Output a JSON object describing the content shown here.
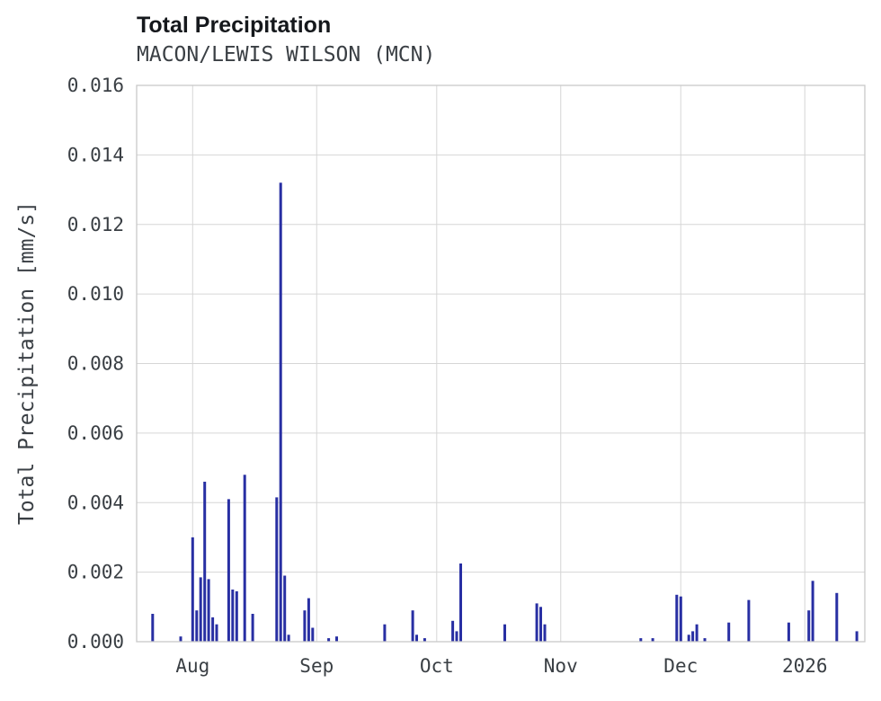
{
  "chart_data": {
    "type": "bar",
    "title": "Total Precipitation",
    "subtitle": "MACON/LEWIS WILSON (MCN)",
    "xlabel": "",
    "ylabel": "Total Precipitation [mm/s]",
    "ylim": [
      0,
      0.016
    ],
    "xlim": [
      "2025-07-18",
      "2026-01-16"
    ],
    "grid": true,
    "legend": "none",
    "bar_color": "#282fa3",
    "grid_color": "#d6d6d6",
    "border_color": "#c9c9c9",
    "y_ticks": [
      {
        "value": 0.0,
        "label": "0.000"
      },
      {
        "value": 0.002,
        "label": "0.002"
      },
      {
        "value": 0.004,
        "label": "0.004"
      },
      {
        "value": 0.006,
        "label": "0.006"
      },
      {
        "value": 0.008,
        "label": "0.008"
      },
      {
        "value": 0.01,
        "label": "0.010"
      },
      {
        "value": 0.012,
        "label": "0.012"
      },
      {
        "value": 0.014,
        "label": "0.014"
      },
      {
        "value": 0.016,
        "label": "0.016"
      }
    ],
    "x_ticks": [
      {
        "date": "2025-08-01",
        "label": "Aug"
      },
      {
        "date": "2025-09-01",
        "label": "Sep"
      },
      {
        "date": "2025-10-01",
        "label": "Oct"
      },
      {
        "date": "2025-11-01",
        "label": "Nov"
      },
      {
        "date": "2025-12-01",
        "label": "Dec"
      },
      {
        "date": "2026-01-01",
        "label": "2026"
      }
    ],
    "series": [
      {
        "name": "Total Precipitation",
        "points": [
          [
            "2025-07-22",
            0.0008
          ],
          [
            "2025-07-29",
            0.00015
          ],
          [
            "2025-08-01",
            0.003
          ],
          [
            "2025-08-02",
            0.0009
          ],
          [
            "2025-08-03",
            0.00185
          ],
          [
            "2025-08-04",
            0.0046
          ],
          [
            "2025-08-05",
            0.0018
          ],
          [
            "2025-08-06",
            0.0007
          ],
          [
            "2025-08-07",
            0.0005
          ],
          [
            "2025-08-10",
            0.0041
          ],
          [
            "2025-08-11",
            0.0015
          ],
          [
            "2025-08-12",
            0.00145
          ],
          [
            "2025-08-14",
            0.0048
          ],
          [
            "2025-08-16",
            0.0008
          ],
          [
            "2025-08-22",
            0.00415
          ],
          [
            "2025-08-23",
            0.0132
          ],
          [
            "2025-08-24",
            0.0019
          ],
          [
            "2025-08-25",
            0.0002
          ],
          [
            "2025-08-29",
            0.0009
          ],
          [
            "2025-08-30",
            0.00125
          ],
          [
            "2025-08-31",
            0.0004
          ],
          [
            "2025-09-04",
            0.0001
          ],
          [
            "2025-09-06",
            0.00015
          ],
          [
            "2025-09-18",
            0.0005
          ],
          [
            "2025-09-25",
            0.0009
          ],
          [
            "2025-09-26",
            0.0002
          ],
          [
            "2025-09-28",
            0.0001
          ],
          [
            "2025-10-05",
            0.0006
          ],
          [
            "2025-10-06",
            0.0003
          ],
          [
            "2025-10-07",
            0.00225
          ],
          [
            "2025-10-18",
            0.0005
          ],
          [
            "2025-10-26",
            0.0011
          ],
          [
            "2025-10-27",
            0.001
          ],
          [
            "2025-10-28",
            0.0005
          ],
          [
            "2025-11-21",
            0.0001
          ],
          [
            "2025-11-24",
            0.0001
          ],
          [
            "2025-11-30",
            0.00135
          ],
          [
            "2025-12-01",
            0.0013
          ],
          [
            "2025-12-03",
            0.0002
          ],
          [
            "2025-12-04",
            0.0003
          ],
          [
            "2025-12-05",
            0.0005
          ],
          [
            "2025-12-07",
            0.0001
          ],
          [
            "2025-12-13",
            0.00055
          ],
          [
            "2025-12-18",
            0.0012
          ],
          [
            "2025-12-28",
            0.00055
          ],
          [
            "2026-01-02",
            0.0009
          ],
          [
            "2026-01-03",
            0.00175
          ],
          [
            "2026-01-09",
            0.0014
          ],
          [
            "2026-01-14",
            0.0003
          ]
        ]
      }
    ]
  }
}
